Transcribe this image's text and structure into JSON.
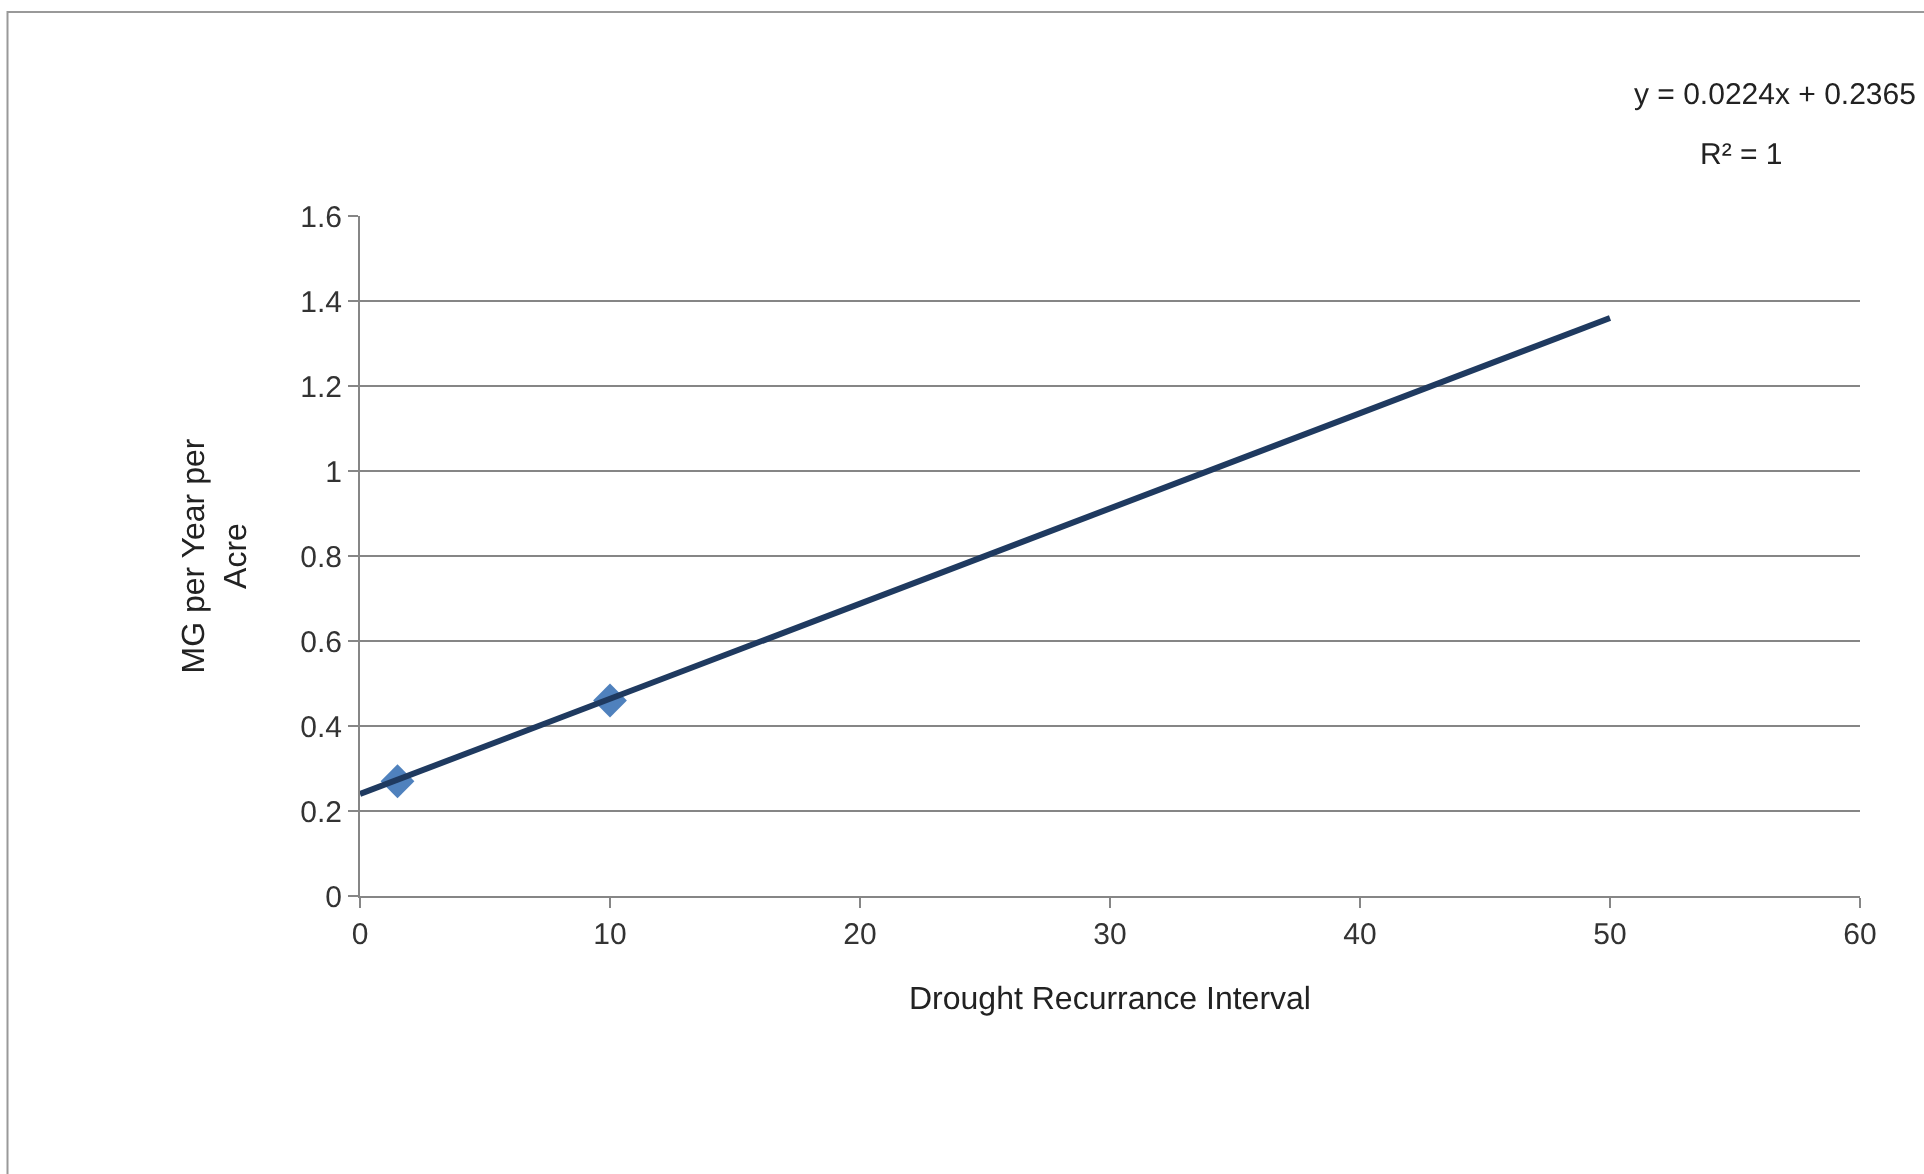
{
  "chart_data": {
    "type": "scatter",
    "xlabel": "Drought Recurrance Interval",
    "ylabel": "MG per Year per Acre",
    "annotations": [
      "y = 0.0224x + 0.2365",
      "R² = 1"
    ],
    "series": [
      {
        "color": "#4f81bd",
        "marker": "diamond",
        "x": [
          1.5,
          10
        ],
        "values": [
          0.27,
          0.46
        ]
      },
      {
        "type": "line",
        "color": "#1f3a60",
        "marker": "none",
        "line_style": "solid",
        "x": [
          0,
          50
        ],
        "values": [
          0.24,
          1.36
        ]
      }
    ],
    "xlim": [
      0,
      60
    ],
    "xticks": [
      0,
      10,
      20,
      30,
      40,
      50,
      60
    ],
    "ylim": [
      0,
      1.6
    ],
    "yticks": [
      0,
      0.2,
      0.4,
      0.6,
      0.8,
      1,
      1.2,
      1.4,
      1.6
    ],
    "grid": "y"
  }
}
